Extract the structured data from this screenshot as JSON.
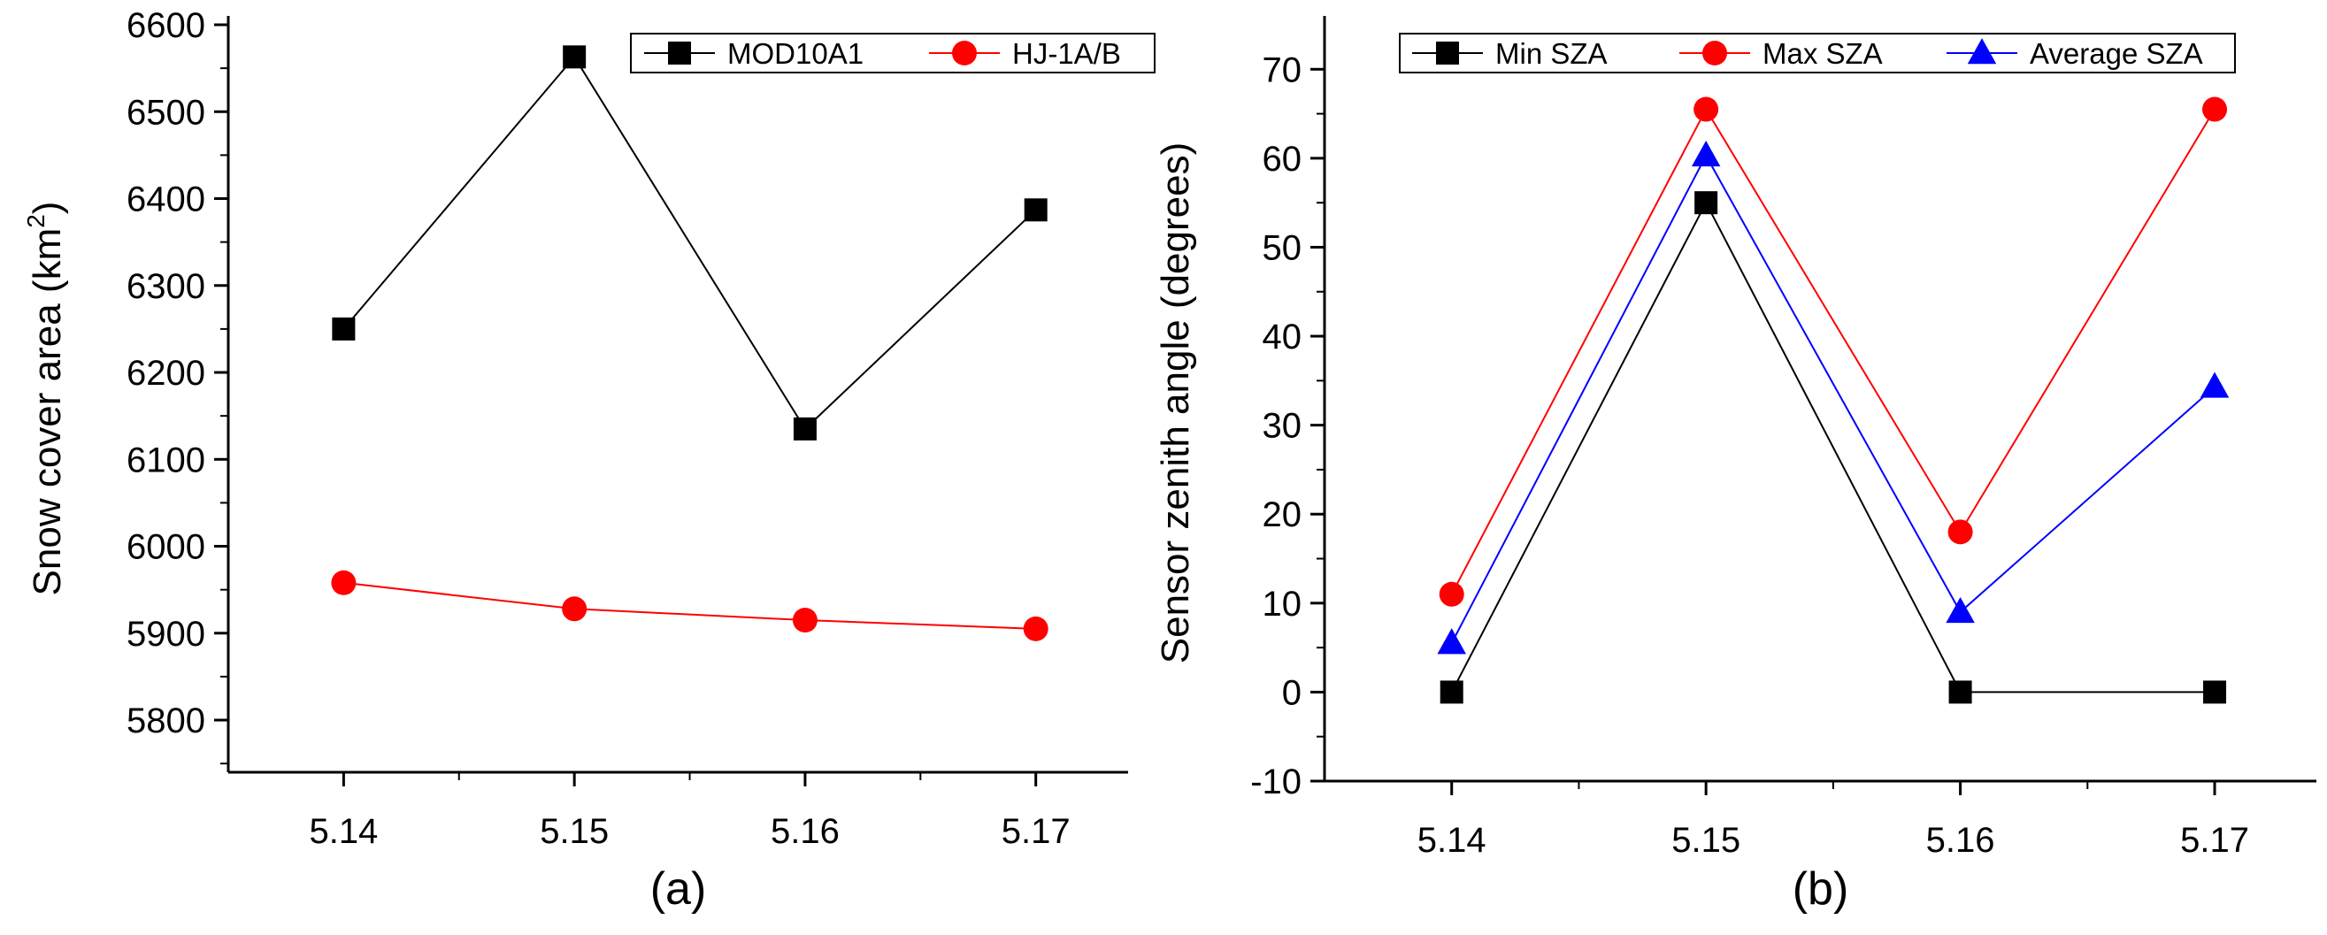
{
  "chart_data": [
    {
      "type": "line",
      "panel_label": "(a)",
      "categories": [
        "5.14",
        "5.15",
        "5.16",
        "5.17"
      ],
      "x": [
        5.14,
        5.15,
        5.16,
        5.17
      ],
      "xlim": [
        5.135,
        5.174
      ],
      "ylim": [
        5740,
        6600
      ],
      "yticks": [
        "5800",
        "5900",
        "6000",
        "6100",
        "6200",
        "6300",
        "6400",
        "6500",
        "6600"
      ],
      "xlabel": "",
      "ylabel": "Snow cover area (km",
      "ylabel_sup": "2",
      "ylabel_close": ")",
      "legend_position": "top-right",
      "series": [
        {
          "name": "MOD10A1",
          "color": "#000000",
          "marker": "square",
          "values": [
            6250,
            6563,
            6135,
            6387
          ]
        },
        {
          "name": "HJ-1A/B",
          "color": "#ff0000",
          "marker": "circle",
          "values": [
            5958,
            5928,
            5915,
            5905
          ]
        }
      ]
    },
    {
      "type": "line",
      "panel_label": "(b)",
      "categories": [
        "5.14",
        "5.15",
        "5.16",
        "5.17"
      ],
      "x": [
        5.14,
        5.15,
        5.16,
        5.17
      ],
      "xlim": [
        5.135,
        5.174
      ],
      "ylim": [
        -10,
        75
      ],
      "yticks": [
        "-10",
        "0",
        "10",
        "20",
        "30",
        "40",
        "50",
        "60",
        "70"
      ],
      "xlabel": "",
      "ylabel": "Sensor zenith angle (degrees)",
      "legend_position": "top",
      "series": [
        {
          "name": "Min SZA",
          "color": "#000000",
          "marker": "square",
          "values": [
            0,
            55,
            0,
            0
          ]
        },
        {
          "name": "Max SZA",
          "color": "#ff0000",
          "marker": "circle",
          "values": [
            11,
            65.5,
            18,
            65.5
          ]
        },
        {
          "name": "Average SZA",
          "color": "#0000ff",
          "marker": "triangle",
          "values": [
            5.5,
            60.3,
            9,
            34.3
          ]
        }
      ]
    }
  ]
}
